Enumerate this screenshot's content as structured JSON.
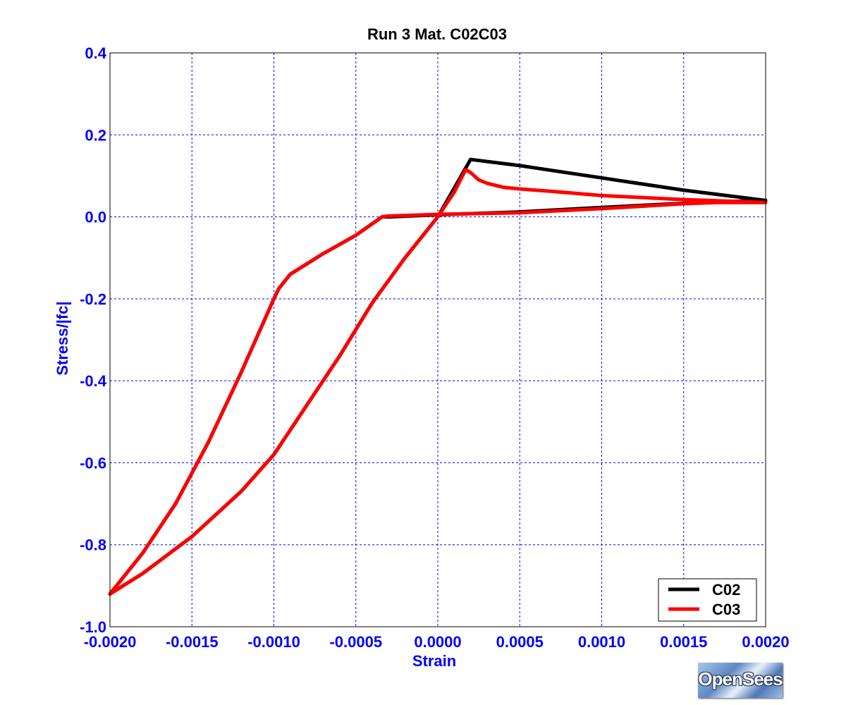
{
  "colors": {
    "axis": "#0000ff",
    "grid": "#0000ff",
    "title": "#000000",
    "frame": "#000000"
  },
  "chart_data": {
    "type": "line",
    "title": "Run 3   Mat. C02C03",
    "xlabel": "Strain",
    "ylabel": "Stress/|fc|",
    "xlim": [
      -0.002,
      0.002
    ],
    "ylim": [
      -1.0,
      0.4
    ],
    "xticks": [
      -0.002,
      -0.0015,
      -0.001,
      -0.0005,
      0.0,
      0.0005,
      0.001,
      0.0015,
      0.002
    ],
    "xtick_labels": [
      "-0.0020",
      "-0.0015",
      "-0.0010",
      "-0.0005",
      "0.0000",
      "0.0005",
      "0.0010",
      "0.0015",
      "0.0020"
    ],
    "yticks": [
      -1.0,
      -0.8,
      -0.6,
      -0.4,
      -0.2,
      0.0,
      0.2,
      0.4
    ],
    "ytick_labels": [
      "-1.0",
      "-0.8",
      "-0.6",
      "-0.4",
      "-0.2",
      "0.0",
      "0.2",
      "0.4"
    ],
    "grid": true,
    "legend_position": "bottom-right",
    "series": [
      {
        "name": "C02",
        "color": "#000000",
        "points": [
          [
            0.0,
            0.0
          ],
          [
            0.0001,
            0.07
          ],
          [
            0.0002,
            0.14
          ],
          [
            0.0005,
            0.125
          ],
          [
            0.001,
            0.095
          ],
          [
            0.0015,
            0.065
          ],
          [
            0.002,
            0.04
          ],
          [
            0.0016,
            0.035
          ],
          [
            0.001,
            0.023
          ],
          [
            0.0005,
            0.012
          ],
          [
            0.0,
            0.005
          ],
          [
            -0.0003,
            0.0
          ],
          [
            -0.00034,
            0.0
          ],
          [
            -0.0005,
            -0.045
          ],
          [
            -0.0007,
            -0.09
          ],
          [
            -0.0009,
            -0.14
          ],
          [
            -0.00097,
            -0.175
          ],
          [
            -0.001,
            -0.2
          ],
          [
            -0.0012,
            -0.38
          ],
          [
            -0.0014,
            -0.55
          ],
          [
            -0.0016,
            -0.7
          ],
          [
            -0.0018,
            -0.82
          ],
          [
            -0.002,
            -0.92
          ],
          [
            -0.0018,
            -0.87
          ],
          [
            -0.0015,
            -0.78
          ],
          [
            -0.0012,
            -0.67
          ],
          [
            -0.001,
            -0.58
          ],
          [
            -0.0008,
            -0.46
          ],
          [
            -0.0006,
            -0.34
          ],
          [
            -0.0004,
            -0.21
          ],
          [
            -0.0002,
            -0.1
          ],
          [
            0.0,
            0.0
          ]
        ]
      },
      {
        "name": "C03",
        "color": "#ff0000",
        "points": [
          [
            0.0,
            0.0
          ],
          [
            0.0001,
            0.06
          ],
          [
            0.00017,
            0.115
          ],
          [
            0.0002,
            0.108
          ],
          [
            0.00025,
            0.09
          ],
          [
            0.0003,
            0.082
          ],
          [
            0.0004,
            0.072
          ],
          [
            0.0005,
            0.068
          ],
          [
            0.0007,
            0.062
          ],
          [
            0.001,
            0.052
          ],
          [
            0.0015,
            0.042
          ],
          [
            0.002,
            0.035
          ],
          [
            0.0017,
            0.035
          ],
          [
            0.0015,
            0.032
          ],
          [
            0.001,
            0.02
          ],
          [
            0.0005,
            0.01
          ],
          [
            0.0,
            0.006
          ],
          [
            -0.0003,
            0.002
          ],
          [
            -0.00034,
            0.0
          ],
          [
            -0.0005,
            -0.045
          ],
          [
            -0.0007,
            -0.09
          ],
          [
            -0.0009,
            -0.14
          ],
          [
            -0.00097,
            -0.175
          ],
          [
            -0.001,
            -0.2
          ],
          [
            -0.0012,
            -0.38
          ],
          [
            -0.0014,
            -0.55
          ],
          [
            -0.0016,
            -0.7
          ],
          [
            -0.0018,
            -0.82
          ],
          [
            -0.002,
            -0.92
          ],
          [
            -0.0018,
            -0.87
          ],
          [
            -0.0015,
            -0.78
          ],
          [
            -0.0012,
            -0.67
          ],
          [
            -0.001,
            -0.58
          ],
          [
            -0.0008,
            -0.46
          ],
          [
            -0.0006,
            -0.34
          ],
          [
            -0.0004,
            -0.21
          ],
          [
            -0.0002,
            -0.1
          ],
          [
            0.0,
            0.0
          ]
        ]
      }
    ]
  },
  "logo": {
    "text": "OpenSees"
  }
}
